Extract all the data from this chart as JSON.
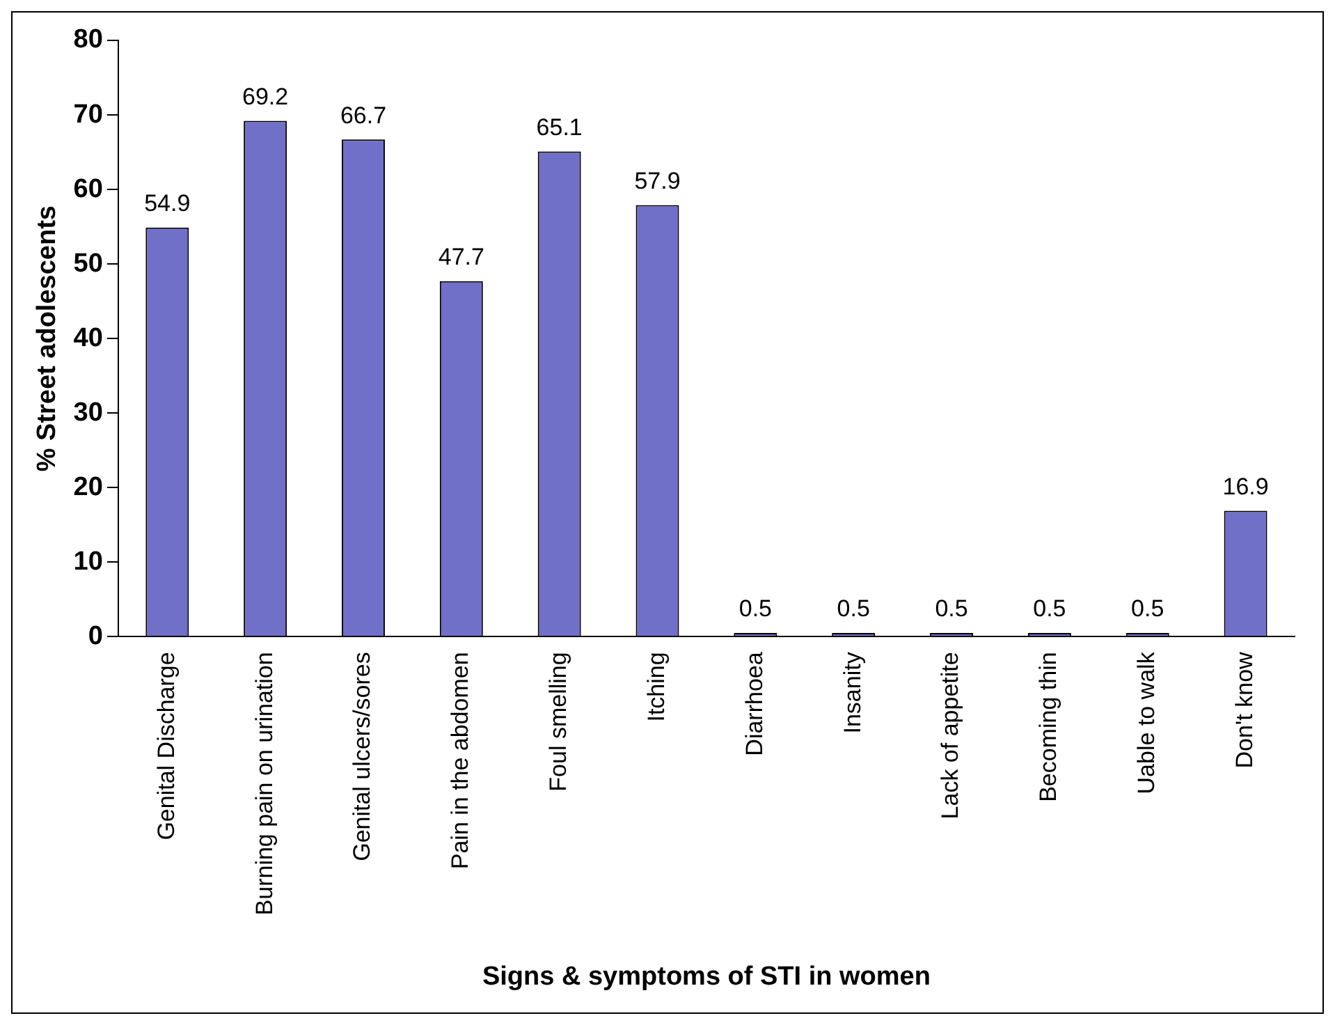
{
  "chart_data": {
    "type": "bar",
    "xlabel": "Signs & symptoms of STI in women",
    "ylabel": "% Street adolescents",
    "categories": [
      "Genital Discharge",
      "Burning pain on urination",
      "Genital ulcers/sores",
      "Pain in the abdomen",
      "Foul smelling",
      "Itching",
      "Diarrhoea",
      "Insanity",
      "Lack of appetite",
      "Becoming thin",
      "Uable to walk",
      "Don't know"
    ],
    "values": [
      54.9,
      69.2,
      66.7,
      47.7,
      65.1,
      57.9,
      0.5,
      0.5,
      0.5,
      0.5,
      0.5,
      16.9
    ],
    "color": "#7070c8",
    "ylim": [
      0,
      80
    ],
    "yticks": [
      0,
      10,
      20,
      30,
      40,
      50,
      60,
      70,
      80
    ],
    "grid": false,
    "legend": false,
    "data_labels": true
  }
}
